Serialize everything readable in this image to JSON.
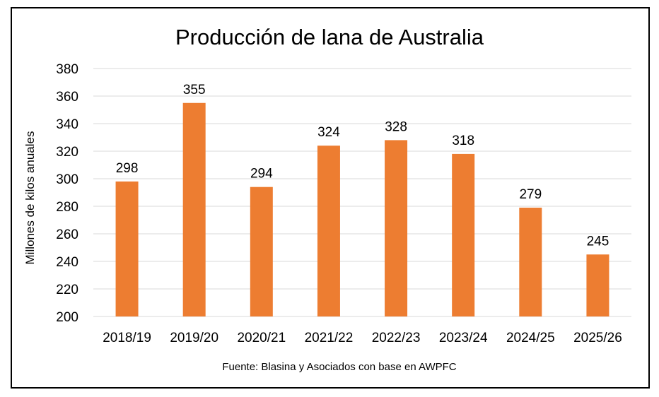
{
  "chart_data": {
    "type": "bar",
    "title": "Producción de lana de Australia",
    "ylabel": "Millones de kilos anuales",
    "xlabel": "",
    "source": "Fuente: Blasina y Asociados con base en AWPFC",
    "categories": [
      "2018/19",
      "2019/20",
      "2020/21",
      "2021/22",
      "2022/23",
      "2023/24",
      "2024/25",
      "2025/26"
    ],
    "values": [
      298,
      355,
      294,
      324,
      328,
      318,
      279,
      245
    ],
    "ylim": [
      200,
      380
    ],
    "yticks": [
      200,
      220,
      240,
      260,
      280,
      300,
      320,
      340,
      360,
      380
    ],
    "grid": true,
    "legend": "none",
    "bar_color": "#ed7d31"
  }
}
